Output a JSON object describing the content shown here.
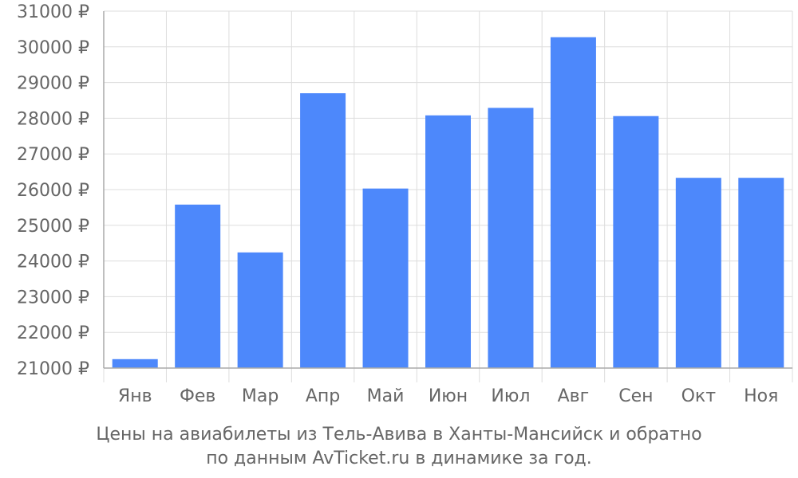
{
  "colors": {
    "bar": "#4d88fb",
    "grid": "#dddddd",
    "axis": "#aaaaaa",
    "text": "#666666"
  },
  "caption": {
    "line1": "Цены на авиабилеты из Тель-Авива в Ханты-Мансийск и обратно",
    "line2": "по данным AvTicket.ru в динамике за год."
  },
  "chart_data": {
    "type": "bar",
    "categories": [
      "Янв",
      "Фев",
      "Мар",
      "Апр",
      "Май",
      "Июн",
      "Июл",
      "Авг",
      "Сен",
      "Окт",
      "Ноя"
    ],
    "values": [
      21250,
      25580,
      24240,
      28700,
      26030,
      28080,
      28290,
      30270,
      28060,
      26330,
      26330
    ],
    "ylim": [
      21000,
      31000
    ],
    "yticks": [
      21000,
      22000,
      23000,
      24000,
      25000,
      26000,
      27000,
      28000,
      29000,
      30000,
      31000
    ],
    "ytick_suffix": " ₽",
    "grid": true
  }
}
